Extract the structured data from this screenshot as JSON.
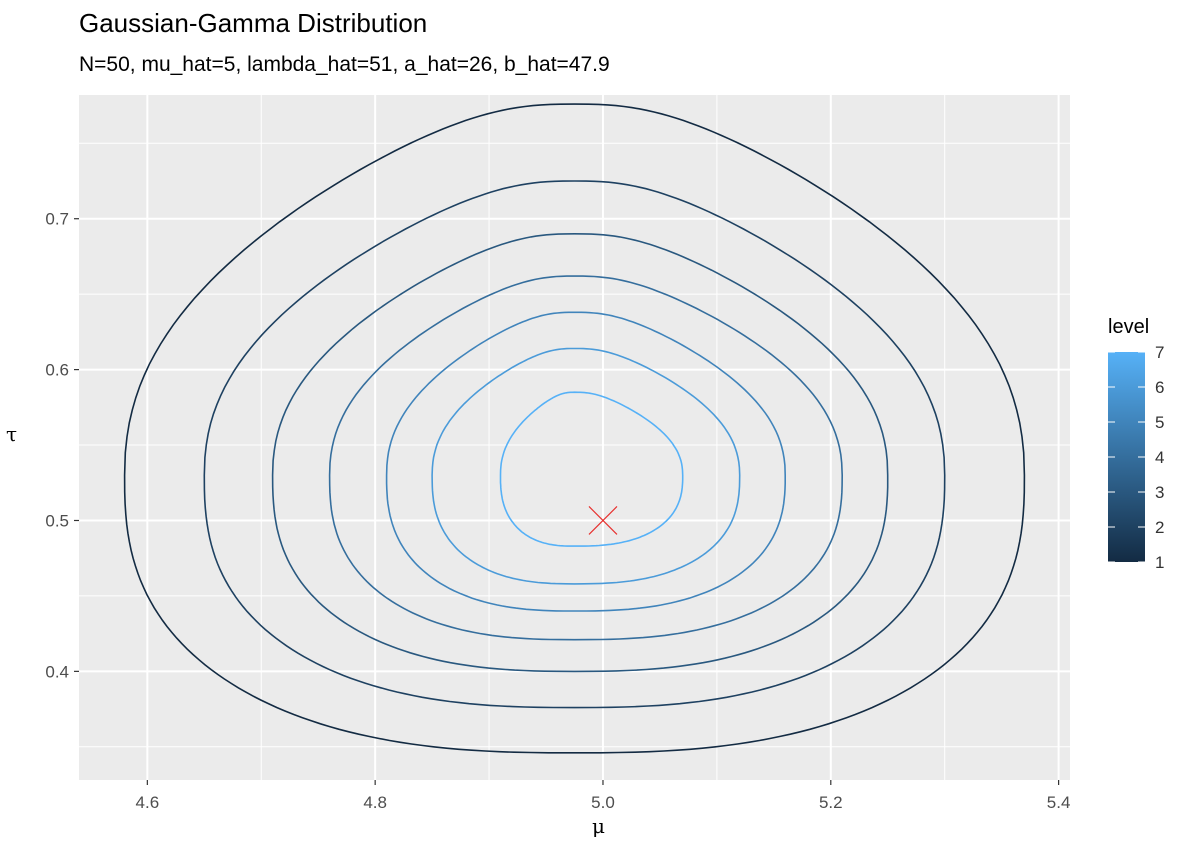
{
  "chart_data": {
    "type": "contour",
    "title": "Gaussian-Gamma Distribution",
    "subtitle": "N=50, mu_hat=5, lambda_hat=51, a_hat=26, b_hat=47.9",
    "xlabel": "μ",
    "ylabel": "τ",
    "xlim": [
      4.54,
      5.41
    ],
    "ylim": [
      0.328,
      0.782
    ],
    "x_ticks": [
      "4.6",
      "4.8",
      "5.0",
      "5.2",
      "5.4"
    ],
    "x_tick_values": [
      4.6,
      4.8,
      5.0,
      5.2,
      5.4
    ],
    "y_ticks": [
      "0.4",
      "0.5",
      "0.6",
      "0.7"
    ],
    "y_tick_values": [
      0.4,
      0.5,
      0.6,
      0.7
    ],
    "grid": true,
    "params": {
      "N": 50,
      "mu_hat": 5,
      "lambda_hat": 51,
      "a_hat": 26,
      "b_hat": 47.9
    },
    "contour_levels": [
      1,
      2,
      3,
      4,
      5,
      6,
      7
    ],
    "contours": [
      {
        "level": 1,
        "mu_range": [
          4.58,
          5.37
        ],
        "tau_range": [
          0.346,
          0.776
        ]
      },
      {
        "level": 2,
        "mu_range": [
          4.65,
          5.3
        ],
        "tau_range": [
          0.376,
          0.725
        ]
      },
      {
        "level": 3,
        "mu_range": [
          4.71,
          5.25
        ],
        "tau_range": [
          0.4,
          0.69
        ]
      },
      {
        "level": 4,
        "mu_range": [
          4.76,
          5.21
        ],
        "tau_range": [
          0.421,
          0.662
        ]
      },
      {
        "level": 5,
        "mu_range": [
          4.81,
          5.16
        ],
        "tau_range": [
          0.44,
          0.638
        ]
      },
      {
        "level": 6,
        "mu_range": [
          4.85,
          5.12
        ],
        "tau_range": [
          0.458,
          0.614
        ]
      },
      {
        "level": 7,
        "mu_range": [
          4.91,
          5.07
        ],
        "tau_range": [
          0.483,
          0.585
        ]
      }
    ],
    "marker": {
      "mu": 5.0,
      "tau": 0.5,
      "shape": "x",
      "color": "#e8312f"
    },
    "legend": {
      "title": "level",
      "labels": [
        "7",
        "6",
        "5",
        "4",
        "3",
        "2",
        "1"
      ],
      "color_low": "#132b43",
      "color_high": "#56b1f7",
      "position": "right"
    },
    "colors": {
      "panel_background": "#ebebeb",
      "grid": "#ffffff",
      "axis_text": "#4d4d4d"
    }
  }
}
